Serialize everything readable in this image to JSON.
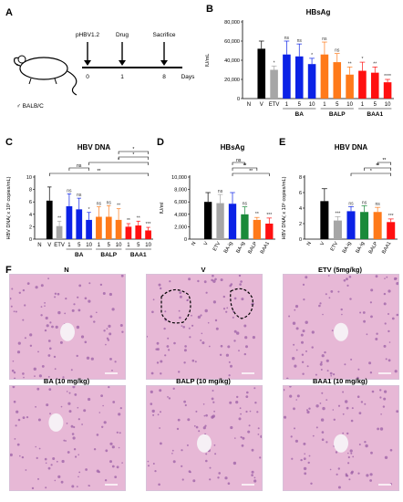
{
  "panel_labels": [
    "A",
    "B",
    "C",
    "D",
    "E",
    "F"
  ],
  "panelA": {
    "timeline_labels": [
      "pHBV1.2",
      "Drug",
      "Sacrifice"
    ],
    "timeline_days": [
      "0",
      "1",
      "8"
    ],
    "days_label": "Days",
    "mouse_label": "♂ BALB/C",
    "colors": {
      "body": "#ffffff",
      "stroke": "#000000"
    }
  },
  "panelF": {
    "titles": [
      "N",
      "V",
      "ETV (5mg/kg)",
      "BA (10 mg/kg)",
      "BALP (10 mg/kg)",
      "BAA1 (10 mg/kg)"
    ],
    "colors": {
      "tissue": "#e7b8d6",
      "nuclei": "#9b5fa6",
      "vessel": "#f6f0f5"
    }
  },
  "chart_data": [
    {
      "id": "B",
      "type": "bar",
      "title": "HBsAg",
      "ylabel": "IU/mL",
      "ylim": [
        0,
        80000
      ],
      "yticks": [
        "0",
        "20,000",
        "40,000",
        "60,000",
        "80,000"
      ],
      "categories": [
        "N",
        "V",
        "ETV",
        "1",
        "5",
        "10",
        "1",
        "5",
        "10",
        "1",
        "5",
        "10"
      ],
      "groups": [
        {
          "name": "BA",
          "from": 3,
          "to": 5
        },
        {
          "name": "BALP",
          "from": 6,
          "to": 8
        },
        {
          "name": "BAA1",
          "from": 9,
          "to": 11
        }
      ],
      "values": [
        0,
        52000,
        30000,
        46000,
        44000,
        36000,
        46000,
        38000,
        25000,
        29000,
        27000,
        17000
      ],
      "errors": [
        0,
        8000,
        4000,
        14000,
        13000,
        6000,
        13000,
        9000,
        8000,
        9000,
        6000,
        3000
      ],
      "annotations": [
        "",
        "",
        "*",
        "ns",
        "ns",
        "*",
        "ns",
        "ns",
        "**",
        "*",
        "**",
        "****"
      ],
      "colors": [
        "#000000",
        "#000000",
        "#a6a6a6",
        "#0b22e6",
        "#0b22e6",
        "#0b22e6",
        "#ff7a1a",
        "#ff7a1a",
        "#ff7a1a",
        "#ff1010",
        "#ff1010",
        "#ff1010"
      ]
    },
    {
      "id": "C",
      "type": "bar",
      "title": "HBV DNA",
      "ylabel": "HBV DNA( x 10⁵ copies/mL)",
      "ylim": [
        0,
        10
      ],
      "yticks": [
        "0",
        "2",
        "4",
        "6",
        "8",
        "10"
      ],
      "categories": [
        "N",
        "V",
        "ETV",
        "1",
        "5",
        "10",
        "1",
        "5",
        "10",
        "1",
        "5",
        "10"
      ],
      "groups": [
        {
          "name": "BA",
          "from": 3,
          "to": 5
        },
        {
          "name": "BALP",
          "from": 6,
          "to": 8
        },
        {
          "name": "BAA1",
          "from": 9,
          "to": 11
        }
      ],
      "values": [
        0,
        6.2,
        2.1,
        5.3,
        4.8,
        3.1,
        3.6,
        3.6,
        3.1,
        2.0,
        2.2,
        1.4
      ],
      "errors": [
        0,
        2.2,
        0.8,
        2.0,
        1.8,
        1.2,
        1.6,
        1.8,
        1.8,
        0.5,
        0.7,
        0.5
      ],
      "annotations": [
        "",
        "",
        "**",
        "ns",
        "ns",
        "*",
        "ns",
        "ns",
        "**",
        "**",
        "**",
        "***"
      ],
      "brackets": [
        {
          "from": 1,
          "to": 11,
          "label": "**"
        },
        {
          "from": 3,
          "to": 5,
          "label": "ns"
        },
        {
          "from": 5,
          "to": 11,
          "label": "*"
        },
        {
          "from": 8,
          "to": 11,
          "label": "*"
        },
        {
          "from": 8,
          "to": 11,
          "label": "*"
        }
      ],
      "colors": [
        "#000000",
        "#000000",
        "#a6a6a6",
        "#0b22e6",
        "#0b22e6",
        "#0b22e6",
        "#ff7a1a",
        "#ff7a1a",
        "#ff7a1a",
        "#ff1010",
        "#ff1010",
        "#ff1010"
      ]
    },
    {
      "id": "D",
      "type": "bar",
      "title": "HBsAg",
      "ylabel": "IU/ml",
      "ylim": [
        0,
        10000
      ],
      "yticks": [
        "0",
        "2,000",
        "4,000",
        "6,000",
        "8,000",
        "10,000"
      ],
      "categories": [
        "N",
        "V",
        "ETV",
        "BA-ig",
        "BA-ig",
        "BALP",
        "BAA1"
      ],
      "values": [
        0,
        6000,
        5800,
        5700,
        4000,
        3100,
        2500
      ],
      "errors": [
        0,
        1500,
        1400,
        1800,
        1200,
        400,
        900
      ],
      "annotations": [
        "",
        "",
        "ns",
        "",
        "ns",
        "**",
        "***"
      ],
      "brackets": [
        {
          "from": 3,
          "to": 6,
          "label": "**"
        },
        {
          "from": 3,
          "to": 5,
          "label": "**"
        },
        {
          "from": 3,
          "to": 4,
          "label": "ns"
        }
      ],
      "colors": [
        "#000000",
        "#000000",
        "#a6a6a6",
        "#0b22e6",
        "#1a8a3a",
        "#ff7a1a",
        "#ff1010"
      ]
    },
    {
      "id": "E",
      "type": "bar",
      "title": "HBV DNA",
      "ylabel": "HBV DNA( x 10⁵ copies/mL)",
      "ylim": [
        0,
        8
      ],
      "yticks": [
        "0",
        "2",
        "4",
        "6",
        "8"
      ],
      "categories": [
        "N",
        "V",
        "ETV",
        "BA-ig",
        "BA-ig",
        "BALP",
        "BAA1"
      ],
      "values": [
        0,
        4.9,
        2.4,
        3.6,
        3.5,
        3.5,
        2.2
      ],
      "errors": [
        0,
        1.6,
        0.5,
        0.6,
        0.8,
        0.6,
        0.4
      ],
      "annotations": [
        "",
        "",
        "***",
        "ns",
        "ns",
        "ns",
        "***"
      ],
      "brackets": [
        {
          "from": 3,
          "to": 6,
          "label": "*"
        },
        {
          "from": 4,
          "to": 6,
          "label": "**"
        },
        {
          "from": 5,
          "to": 6,
          "label": "**"
        }
      ],
      "colors": [
        "#000000",
        "#000000",
        "#a6a6a6",
        "#0b22e6",
        "#1a8a3a",
        "#ff7a1a",
        "#ff1010"
      ]
    }
  ]
}
